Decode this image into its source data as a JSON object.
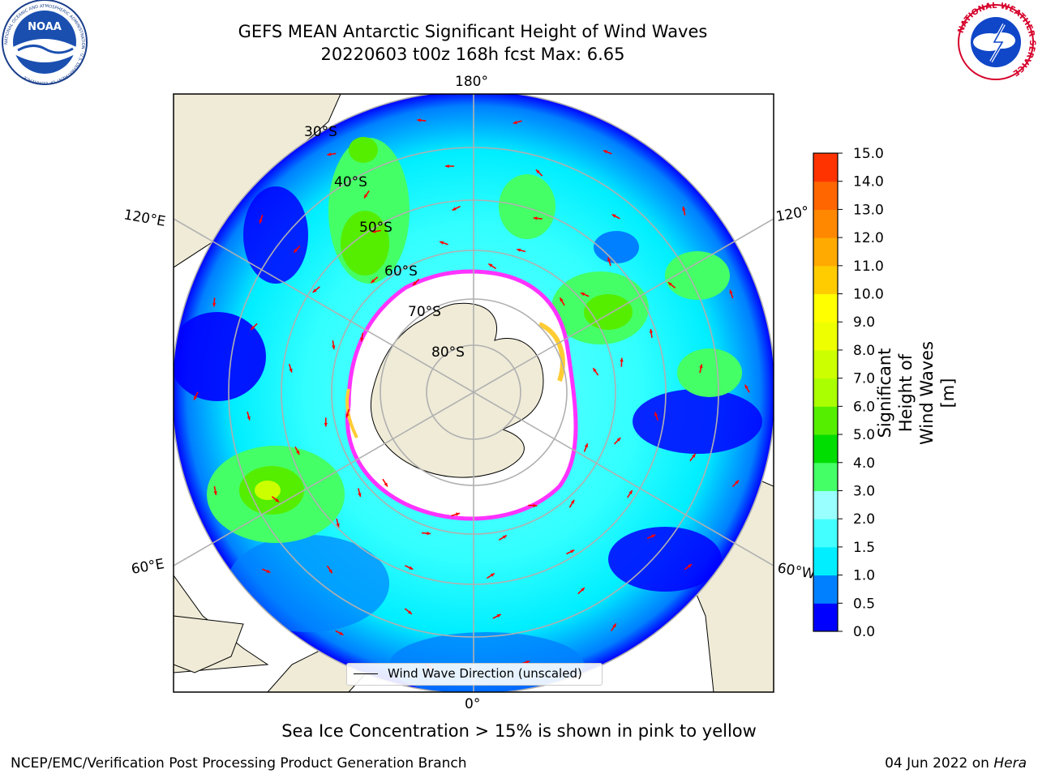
{
  "title_line1": "GEFS MEAN Antarctic Significant Height of Wind Waves",
  "title_line2": "20220603 t00z 168h fcst   Max: 6.65",
  "footnote": "Sea Ice Concentration > 15% is shown in pink to yellow",
  "credit": "NCEP/EMC/Verification Post Processing Product Generation Branch",
  "date_text": "04 Jun 2022 on ",
  "date_machine": "Hera",
  "logos": {
    "left": "NOAA",
    "left_ring": "NATIONAL OCEANIC AND ATMOSPHERIC ADMINISTRATION · U.S. DEPARTMENT OF COMMERCE",
    "right_ring": "NATIONAL WEATHER SERVICE"
  },
  "map": {
    "projection": "south-polar-stereographic",
    "longitude_labels": {
      "top": "180°",
      "bottom": "0°",
      "upper_left": "120°E",
      "lower_left": "60°E",
      "upper_right": "120°",
      "lower_right": "60°W"
    },
    "latitude_labels": [
      "30°S",
      "40°S",
      "50°S",
      "60°S",
      "70°S",
      "80°S"
    ],
    "legend_label": "Wind Wave Direction (unscaled)",
    "arrow_color": "#ff0000",
    "sea_ice_colors": [
      "#ff33ff",
      "#ffcc33"
    ],
    "land_color": "#efebd7"
  },
  "colorbar": {
    "label": "Significant Height of Wind Waves [m]",
    "ticks": [
      "0.0",
      "0.5",
      "1.0",
      "1.5",
      "2.0",
      "3.0",
      "4.0",
      "5.0",
      "6.0",
      "7.0",
      "8.0",
      "9.0",
      "10.0",
      "11.0",
      "12.0",
      "13.0",
      "14.0",
      "15.0"
    ],
    "colors": [
      "#0000ff",
      "#0080ff",
      "#00eeff",
      "#44ffff",
      "#99ffff",
      "#44ff66",
      "#00dd00",
      "#55ee00",
      "#aaff00",
      "#ccff00",
      "#eeff00",
      "#ffff00",
      "#ffcc00",
      "#ffaa00",
      "#ff8800",
      "#ff6600",
      "#ff3300"
    ]
  }
}
